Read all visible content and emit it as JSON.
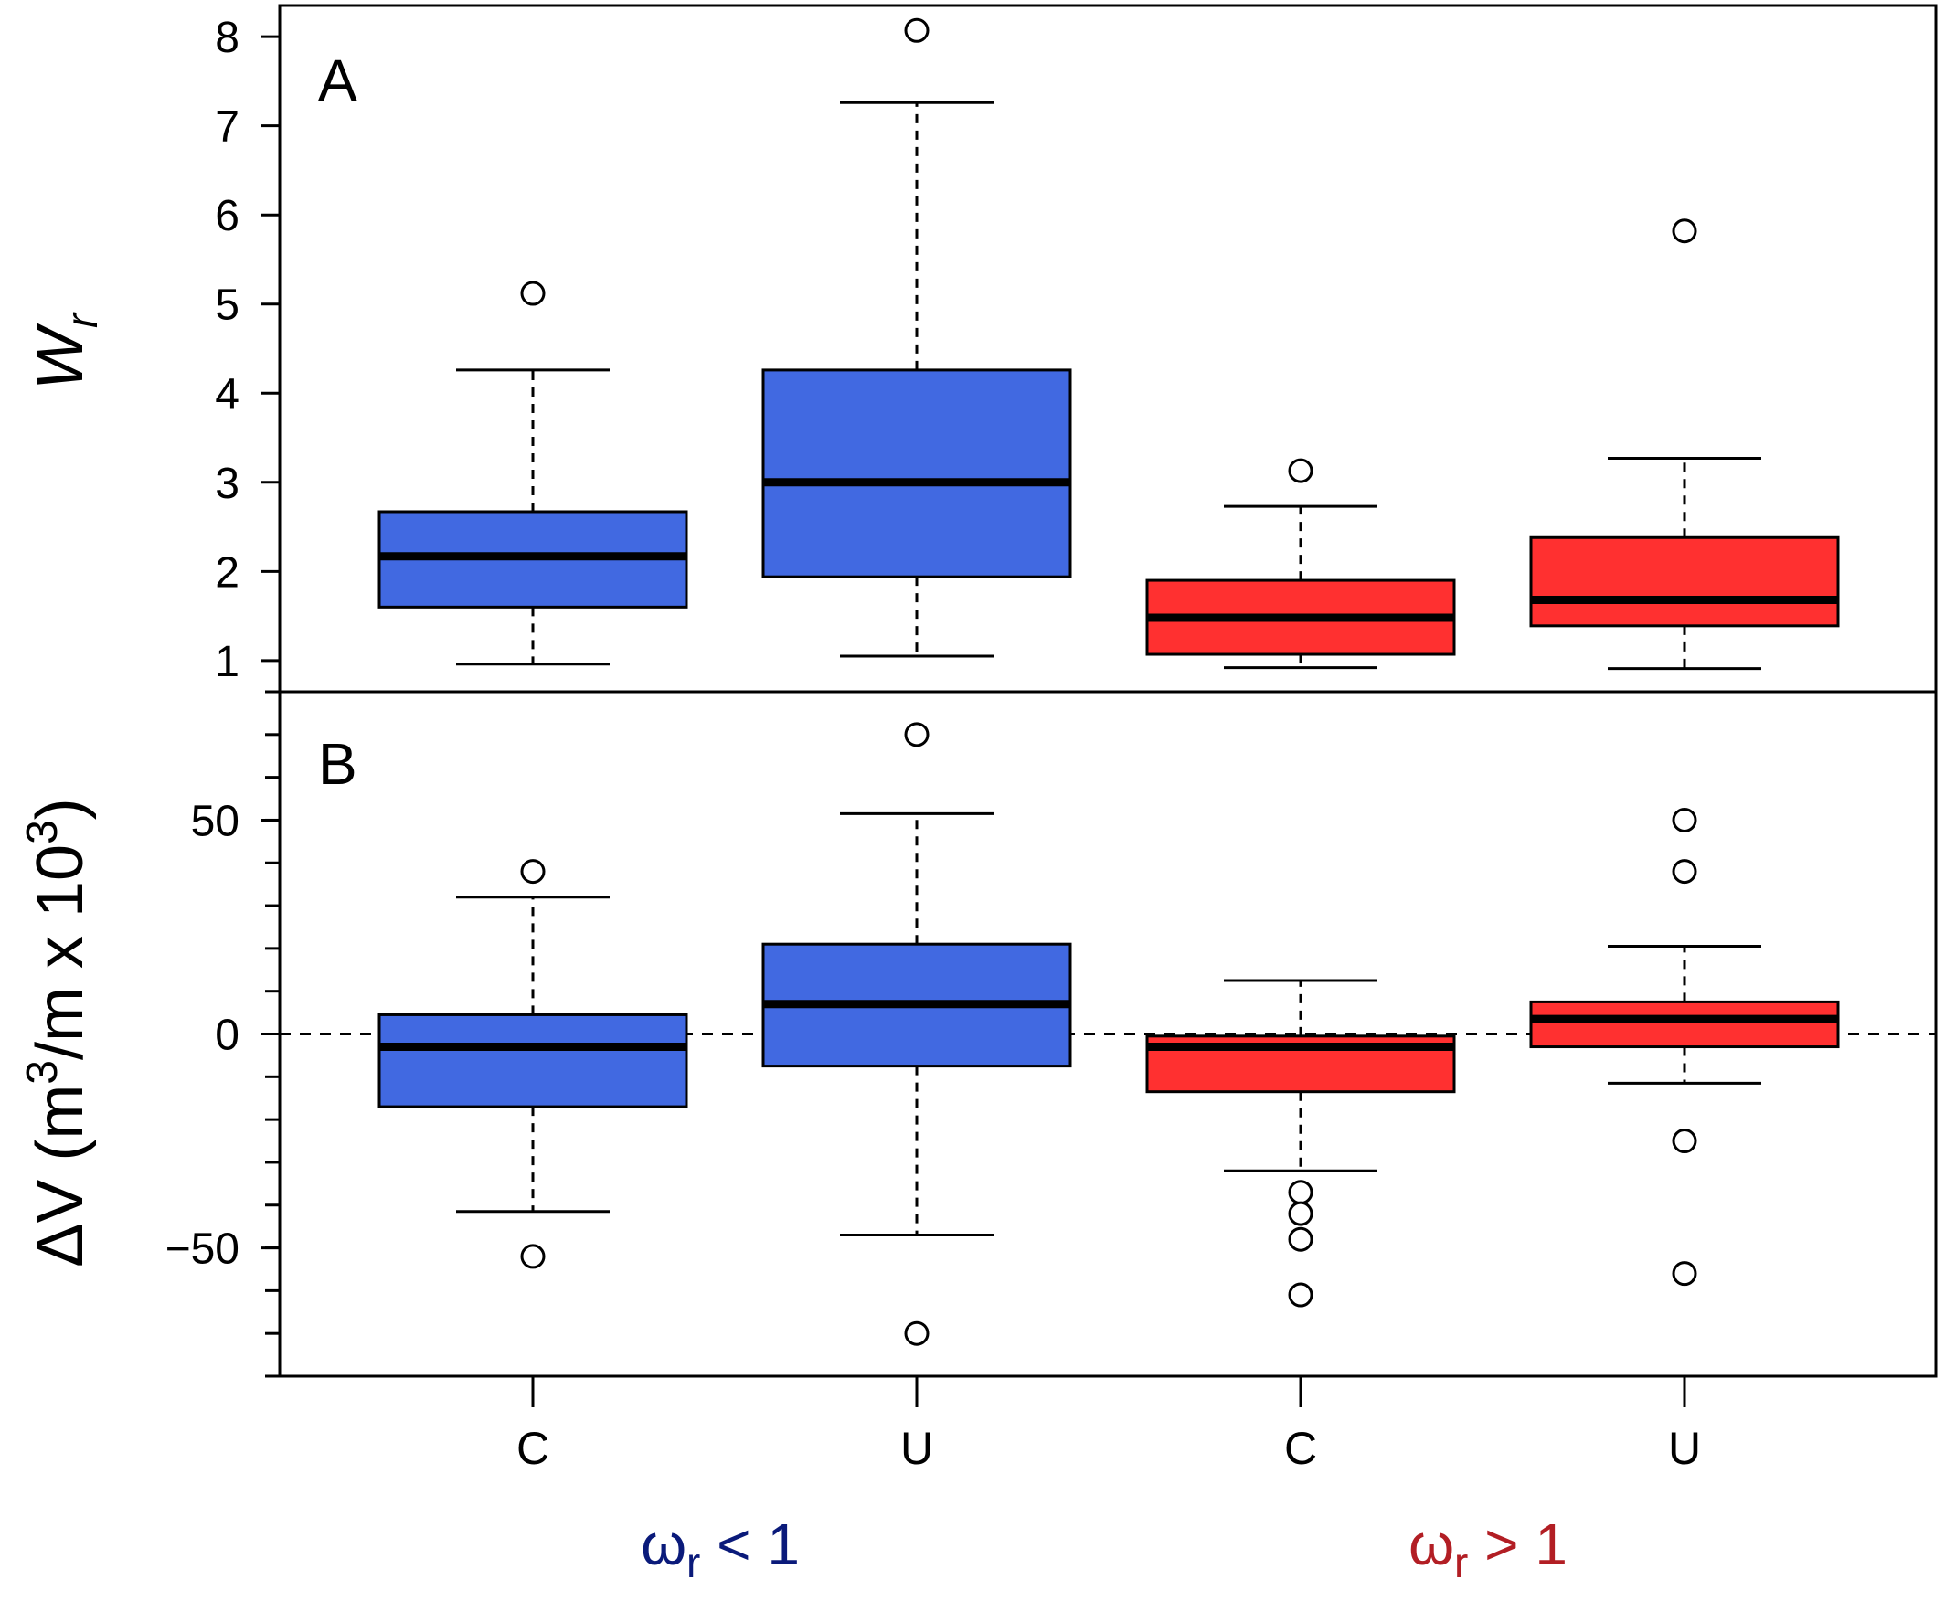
{
  "chart_data": [
    {
      "type": "boxplot",
      "panel_label": "A",
      "ylabel": "W_r",
      "ylim": [
        0.65,
        8.35
      ],
      "yticks": [
        1,
        2,
        3,
        4,
        5,
        6,
        7,
        8
      ],
      "grid": false,
      "categories": [
        "C",
        "U",
        "C",
        "U"
      ],
      "boxes": [
        {
          "category": "C",
          "group": "ωr < 1",
          "fill": "#4169e1",
          "q1": 1.6,
          "median": 2.17,
          "q3": 2.67,
          "whisker_low": 0.96,
          "whisker_high": 4.26,
          "outliers": [
            5.12
          ]
        },
        {
          "category": "U",
          "group": "ωr < 1",
          "fill": "#4169e1",
          "q1": 1.94,
          "median": 3.0,
          "q3": 4.26,
          "whisker_low": 1.05,
          "whisker_high": 7.26,
          "outliers": [
            8.07
          ]
        },
        {
          "category": "C",
          "group": "ωr > 1",
          "fill": "#ff3030",
          "q1": 1.07,
          "median": 1.48,
          "q3": 1.9,
          "whisker_low": 0.92,
          "whisker_high": 2.73,
          "outliers": [
            3.13
          ]
        },
        {
          "category": "U",
          "group": "ωr > 1",
          "fill": "#ff3030",
          "q1": 1.39,
          "median": 1.68,
          "q3": 2.38,
          "whisker_low": 0.91,
          "whisker_high": 3.27,
          "outliers": [
            5.82
          ]
        }
      ]
    },
    {
      "type": "boxplot",
      "panel_label": "B",
      "ylabel": "ΔV (m3/m x 103)",
      "ylim": [
        -80,
        80
      ],
      "yticks": [
        -50,
        0,
        50
      ],
      "yticks_minor_step": 10,
      "reference_line": 0,
      "grid": false,
      "categories": [
        "C",
        "U",
        "C",
        "U"
      ],
      "boxes": [
        {
          "category": "C",
          "group": "ωr < 1",
          "fill": "#4169e1",
          "q1": -17,
          "median": -3,
          "q3": 4.5,
          "whisker_low": -41.5,
          "whisker_high": 32,
          "outliers": [
            38,
            -52
          ]
        },
        {
          "category": "U",
          "group": "ωr < 1",
          "fill": "#4169e1",
          "q1": -7.5,
          "median": 7,
          "q3": 21,
          "whisker_low": -47,
          "whisker_high": 51.5,
          "outliers": [
            70,
            -70
          ]
        },
        {
          "category": "C",
          "group": "ωr > 1",
          "fill": "#ff3030",
          "q1": -13.5,
          "median": -3,
          "q3": -0.5,
          "whisker_low": -32,
          "whisker_high": 12.5,
          "outliers": [
            -37,
            -42,
            -48,
            -61
          ]
        },
        {
          "category": "U",
          "group": "ωr > 1",
          "fill": "#ff3030",
          "q1": -3,
          "median": 3.5,
          "q3": 7.5,
          "whisker_low": -11.5,
          "whisker_high": 20.5,
          "outliers": [
            50,
            38,
            -25,
            -56
          ]
        }
      ]
    }
  ],
  "panels": {
    "a": {
      "label": "A",
      "ylabel_main": "W",
      "ylabel_sub": "r"
    },
    "b": {
      "label": "B",
      "ylabel_prefix": "ΔV (m",
      "ylabel_sup1": "3",
      "ylabel_mid": "/m x 10",
      "ylabel_sup2": "3",
      "ylabel_suffix": ")"
    }
  },
  "groups": [
    {
      "symbol": "ω",
      "sub": "r",
      "relation": " < 1",
      "color": "#0a1a7a"
    },
    {
      "symbol": "ω",
      "sub": "r",
      "relation": " > 1",
      "color": "#b21e24"
    }
  ],
  "colors": {
    "blue_box": "#4169e1",
    "red_box": "#ff3030"
  }
}
